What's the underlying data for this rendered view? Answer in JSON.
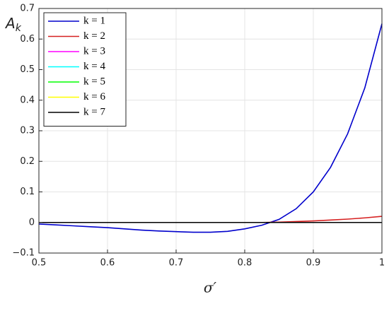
{
  "chart_data": {
    "type": "line",
    "xlabel": "σ′",
    "ylabel": "A",
    "ylabel_subscript": "k",
    "x": [
      0.5,
      0.525,
      0.55,
      0.575,
      0.6,
      0.625,
      0.65,
      0.675,
      0.7,
      0.725,
      0.75,
      0.775,
      0.8,
      0.825,
      0.85,
      0.875,
      0.9,
      0.925,
      0.95,
      0.975,
      1.0
    ],
    "series": [
      {
        "name": "k = 1",
        "color": "#0000cc",
        "values": [
          -0.005,
          -0.008,
          -0.011,
          -0.014,
          -0.017,
          -0.021,
          -0.025,
          -0.028,
          -0.03,
          -0.032,
          -0.032,
          -0.029,
          -0.021,
          -0.009,
          0.01,
          0.045,
          0.1,
          0.18,
          0.29,
          0.44,
          0.65
        ]
      },
      {
        "name": "k = 2",
        "color": "#d62020",
        "values": [
          0,
          0,
          0,
          0,
          0,
          0,
          0,
          0,
          0,
          0,
          0,
          0,
          0,
          0,
          0.001,
          0.003,
          0.005,
          0.008,
          0.011,
          0.015,
          0.02
        ]
      },
      {
        "name": "k = 3",
        "color": "#ff00ff",
        "values": [
          0,
          0,
          0,
          0,
          0,
          0,
          0,
          0,
          0,
          0,
          0,
          0,
          0,
          0,
          0,
          0,
          0,
          0,
          0,
          0,
          0
        ]
      },
      {
        "name": "k = 4",
        "color": "#00ffff",
        "values": [
          0,
          0,
          0,
          0,
          0,
          0,
          0,
          0,
          0,
          0,
          0,
          0,
          0,
          0,
          0,
          0,
          0,
          0,
          0,
          0,
          0
        ]
      },
      {
        "name": "k = 5",
        "color": "#00ff00",
        "values": [
          0,
          0,
          0,
          0,
          0,
          0,
          0,
          0,
          0,
          0,
          0,
          0,
          0,
          0,
          0,
          0,
          0,
          0,
          0,
          0,
          0
        ]
      },
      {
        "name": "k = 6",
        "color": "#ffff00",
        "values": [
          0,
          0,
          0,
          0,
          0,
          0,
          0,
          0,
          0,
          0,
          0,
          0,
          0,
          0,
          0,
          0,
          0,
          0,
          0,
          0,
          0
        ]
      },
      {
        "name": "k = 7",
        "color": "#000000",
        "values": [
          0,
          0,
          0,
          0,
          0,
          0,
          0,
          0,
          0,
          0,
          0,
          0,
          0,
          0,
          0,
          0,
          0,
          0,
          0,
          0,
          0
        ]
      }
    ],
    "xlim": [
      0.5,
      1
    ],
    "xticks": [
      0.5,
      0.6,
      0.7,
      0.8,
      0.9,
      1
    ],
    "ylim": [
      -0.1,
      0.7
    ],
    "yticks": [
      {
        "value": -0.1,
        "label": "−0.1"
      },
      0,
      0.1,
      0.2,
      0.3,
      0.4,
      0.5,
      0.6,
      0.7
    ],
    "grid": true,
    "legend": "upper left"
  }
}
